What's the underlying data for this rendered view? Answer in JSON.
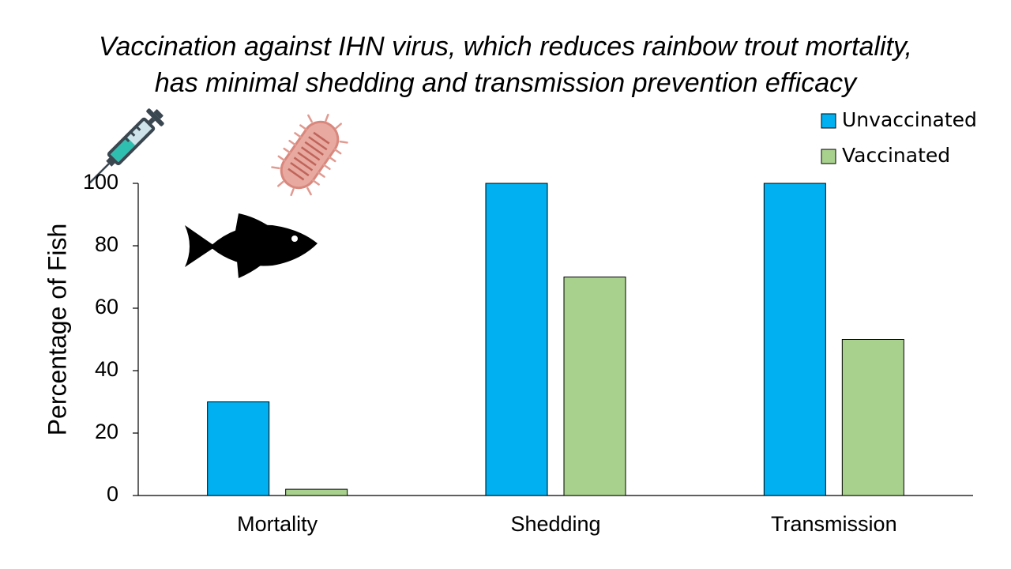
{
  "chart_data": {
    "type": "bar",
    "title_lines": [
      "Vaccination against IHN virus, which reduces rainbow trout mortality,",
      "has minimal shedding and transmission prevention efficacy"
    ],
    "categories": [
      "Mortality",
      "Shedding",
      "Transmission"
    ],
    "series": [
      {
        "name": "Unvaccinated",
        "values": [
          30,
          100,
          100
        ],
        "color": "#00B0F0"
      },
      {
        "name": "Vaccinated",
        "values": [
          2,
          70,
          50
        ],
        "color": "#A9D18E"
      }
    ],
    "xlabel": "",
    "ylabel": "Percentage of Fish",
    "ylim": [
      0,
      100
    ],
    "yticks": [
      0,
      20,
      40,
      60,
      80,
      100
    ],
    "grid": false,
    "legend_position": "top-right"
  },
  "icons": [
    "syringe-icon",
    "virus-icon",
    "fish-icon"
  ]
}
